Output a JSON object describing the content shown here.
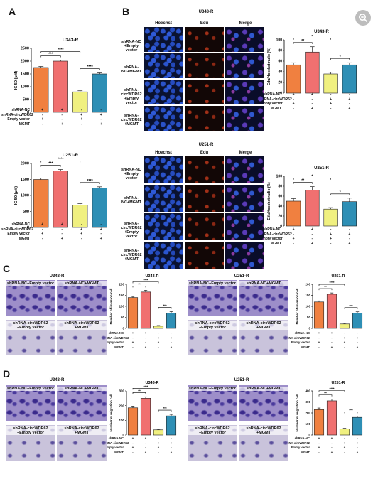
{
  "panels": {
    "A": "A",
    "B": "B",
    "C": "C",
    "D": "D"
  },
  "zoom_icon": "zoom-in-icon",
  "colors": {
    "orange": "#f08040",
    "salmon": "#f07070",
    "yellow": "#f0f080",
    "blue": "#2e8fb5"
  },
  "row_labels": [
    "shRNA-NC",
    "shRNA-circWDR62",
    "Empty vector",
    "MGMT"
  ],
  "signs": [
    [
      "+",
      "+",
      "-",
      "-"
    ],
    [
      "-",
      "-",
      "+",
      "+"
    ],
    [
      "+",
      "-",
      "+",
      "-"
    ],
    [
      "-",
      "+",
      "-",
      "+"
    ]
  ],
  "B": {
    "col_titles": [
      "Hoechst",
      "Edu",
      "Merge"
    ],
    "u343_title": "U343-R",
    "u251_title": "U251-R",
    "row_captions": [
      "shRNA-NC\n+Empty vector",
      "shRNA-NC+MGMT",
      "shRNA-circWDR62\n+Empty vector",
      "shRNA-circWDR62\n+MGMT"
    ]
  },
  "C": {
    "u343_title": "U343-R",
    "u251_title": "U251-R",
    "captions": [
      "shRNA-NC+Empty vector",
      "shRNA-NC+MGMT",
      "shRNA-circWDR62\n+Empty vector",
      "shRNA-circWDR62\n+MGMT"
    ]
  },
  "D": {
    "u343_title": "U343-R",
    "u251_title": "U251-R",
    "captions": [
      "shRNA-NC+Empty vector",
      "shRNA-NC+MGMT",
      "shRNA-circWDR62\n+Empty vector",
      "shRNA-circWDR62\n+MGMT"
    ]
  },
  "chart_data": [
    {
      "id": "A1",
      "type": "bar",
      "title": "U343-R",
      "ylabel": "IC 50 (μM)",
      "ylim": [
        0,
        2500
      ],
      "yticks": [
        0,
        500,
        1000,
        1500,
        2000,
        2500
      ],
      "values": [
        1750,
        2000,
        800,
        1500
      ],
      "errors": [
        40,
        40,
        40,
        40
      ],
      "sig": [
        {
          "a": 0,
          "b": 1,
          "label": "***"
        },
        {
          "a": 0,
          "b": 2,
          "label": "****"
        },
        {
          "a": 2,
          "b": 3,
          "label": "****"
        }
      ]
    },
    {
      "id": "B1",
      "type": "bar",
      "title": "U343-R",
      "ylabel": "Edu/Hoechst radio (%)",
      "ylim": [
        0,
        100
      ],
      "yticks": [
        0,
        20,
        40,
        60,
        80,
        100
      ],
      "values": [
        53,
        77,
        36,
        53
      ],
      "errors": [
        4,
        10,
        3,
        4
      ],
      "sig": [
        {
          "a": 0,
          "b": 1,
          "label": "**"
        },
        {
          "a": 0,
          "b": 2,
          "label": "*"
        },
        {
          "a": 2,
          "b": 3,
          "label": "*"
        }
      ]
    },
    {
      "id": "A2",
      "type": "bar",
      "title": "U251-R",
      "ylabel": "IC 50 (μM)",
      "ylim": [
        0,
        2000
      ],
      "yticks": [
        0,
        500,
        1000,
        1500,
        2000
      ],
      "values": [
        1500,
        1770,
        700,
        1230
      ],
      "errors": [
        40,
        40,
        40,
        40
      ],
      "sig": [
        {
          "a": 0,
          "b": 1,
          "label": "***"
        },
        {
          "a": 0,
          "b": 2,
          "label": "****"
        },
        {
          "a": 2,
          "b": 3,
          "label": "****"
        }
      ]
    },
    {
      "id": "B2",
      "type": "bar",
      "title": "U251-R",
      "ylabel": "Edu/Hoechst radio (%)",
      "ylim": [
        0,
        100
      ],
      "yticks": [
        0,
        20,
        40,
        60,
        80,
        100
      ],
      "values": [
        50,
        72,
        34,
        49
      ],
      "errors": [
        5,
        7,
        3,
        7
      ],
      "sig": [
        {
          "a": 0,
          "b": 1,
          "label": "**"
        },
        {
          "a": 0,
          "b": 2,
          "label": "*"
        },
        {
          "a": 2,
          "b": 3,
          "label": "*"
        }
      ]
    },
    {
      "id": "C1",
      "type": "bar",
      "title": "U343-R",
      "ylabel": "Number of invasion cell",
      "ylim": [
        0,
        200
      ],
      "yticks": [
        0,
        50,
        100,
        150,
        200
      ],
      "values": [
        140,
        165,
        10,
        70
      ],
      "errors": [
        5,
        8,
        3,
        6
      ],
      "sig": [
        {
          "a": 0,
          "b": 1,
          "label": "**"
        },
        {
          "a": 0,
          "b": 2,
          "label": "****"
        },
        {
          "a": 2,
          "b": 3,
          "label": "***"
        }
      ]
    },
    {
      "id": "C2",
      "type": "bar",
      "title": "U251-R",
      "ylabel": "Number of invasion cell",
      "ylim": [
        0,
        200
      ],
      "yticks": [
        0,
        50,
        100,
        150,
        200
      ],
      "values": [
        120,
        155,
        20,
        70
      ],
      "errors": [
        5,
        6,
        3,
        5
      ],
      "sig": [
        {
          "a": 0,
          "b": 1,
          "label": "**"
        },
        {
          "a": 0,
          "b": 2,
          "label": "****"
        },
        {
          "a": 2,
          "b": 3,
          "label": "***"
        }
      ]
    },
    {
      "id": "D1",
      "type": "bar",
      "title": "U343-R",
      "ylabel": "Number of migration cell",
      "ylim": [
        0,
        300
      ],
      "yticks": [
        0,
        100,
        200,
        300
      ],
      "values": [
        185,
        250,
        35,
        130
      ],
      "errors": [
        12,
        10,
        4,
        10
      ],
      "sig": [
        {
          "a": 0,
          "b": 1,
          "label": "**"
        },
        {
          "a": 0,
          "b": 2,
          "label": "****"
        },
        {
          "a": 2,
          "b": 3,
          "label": "***"
        }
      ]
    },
    {
      "id": "D2",
      "type": "bar",
      "title": "U251-R",
      "ylabel": "Number of migration cell",
      "ylim": [
        0,
        400
      ],
      "yticks": [
        0,
        100,
        200,
        300,
        400
      ],
      "values": [
        230,
        310,
        55,
        160
      ],
      "errors": [
        15,
        15,
        5,
        12
      ],
      "sig": [
        {
          "a": 0,
          "b": 1,
          "label": "**"
        },
        {
          "a": 0,
          "b": 2,
          "label": "****"
        },
        {
          "a": 2,
          "b": 3,
          "label": "***"
        }
      ]
    }
  ]
}
